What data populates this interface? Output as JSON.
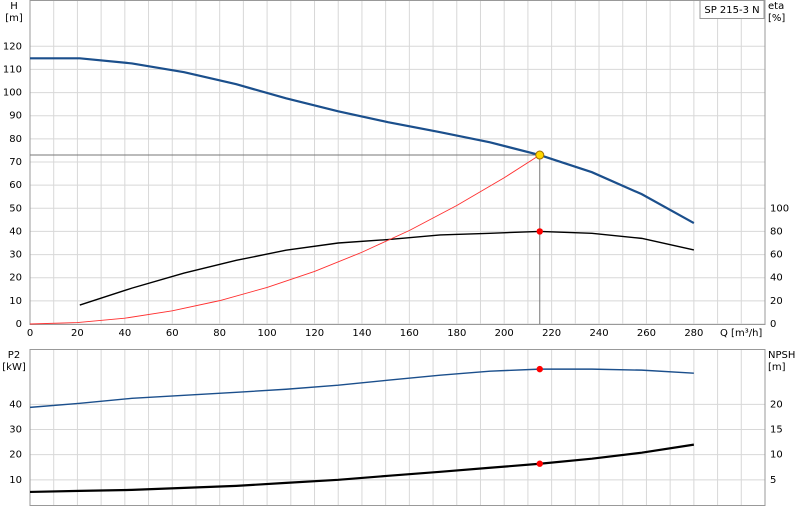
{
  "chart_data": [
    {
      "type": "line",
      "title": "SP 215-3 N",
      "y_label": "H",
      "y_unit": "[m]",
      "y2_label": "eta",
      "y2_unit": "[%]",
      "x_label": "Q [m³/h]",
      "xlim": [
        0,
        310
      ],
      "xticks": [
        0,
        20,
        40,
        60,
        80,
        100,
        120,
        140,
        160,
        180,
        200,
        220,
        240,
        260,
        280
      ],
      "xminorticks": [
        10,
        30,
        50,
        70,
        90,
        110,
        130,
        150,
        170,
        190,
        210,
        230,
        250,
        270,
        290,
        300
      ],
      "ylim": [
        0,
        140
      ],
      "yticks": [
        0,
        10,
        20,
        30,
        40,
        50,
        60,
        70,
        80,
        90,
        100,
        110,
        120
      ],
      "y2lim": [
        0,
        280
      ],
      "y2ticks": [
        0,
        20,
        40,
        60,
        80,
        100
      ],
      "grid": true,
      "series": [
        {
          "color": "#1b4f8c",
          "width": 2.2,
          "x": [
            0,
            21,
            43,
            65,
            87,
            108,
            130,
            151,
            173,
            194,
            215,
            237,
            258,
            280
          ],
          "values": [
            114.8,
            114.8,
            112.6,
            108.8,
            103.6,
            97.5,
            91.9,
            87.2,
            82.9,
            78.5,
            73,
            65.6,
            56.1,
            43.6
          ]
        },
        {
          "color": "#000000",
          "width": 1.4,
          "axis": "y2",
          "x": [
            21,
            43,
            65,
            87,
            108,
            130,
            151,
            173,
            194,
            215,
            237,
            258,
            280
          ],
          "values": [
            16.4,
            31,
            44,
            55,
            63.8,
            70,
            73,
            77,
            78.4,
            80,
            78.4,
            74,
            64
          ]
        },
        {
          "color": "#ff3030",
          "width": 0.9,
          "x": [
            0,
            20,
            40,
            60,
            80,
            100,
            120,
            140,
            160,
            180,
            200,
            215
          ],
          "values": [
            0,
            0.6,
            2.5,
            5.7,
            10.1,
            15.8,
            22.7,
            31,
            40.4,
            51.2,
            63.2,
            73
          ]
        }
      ],
      "points": [
        {
          "x": 215,
          "y": 73,
          "color": "#ffd700",
          "guide": true
        },
        {
          "x": 215,
          "y": 80,
          "axis": "y2",
          "color": "#ff0000"
        }
      ]
    },
    {
      "type": "line",
      "y_label": "P2",
      "y_unit": "[kW]",
      "y2_label": "NPSH",
      "y2_unit": "[m]",
      "xlim": [
        0,
        310
      ],
      "xticks": [
        0,
        20,
        40,
        60,
        80,
        100,
        120,
        140,
        160,
        180,
        200,
        220,
        240,
        260,
        280
      ],
      "xminorticks": [
        10,
        30,
        50,
        70,
        90,
        110,
        130,
        150,
        170,
        190,
        210,
        230,
        250,
        270,
        290,
        300
      ],
      "ylim": [
        0,
        62
      ],
      "yticks": [
        10,
        20,
        30,
        40
      ],
      "y2lim": [
        0,
        31
      ],
      "y2ticks": [
        5,
        10,
        15,
        20
      ],
      "grid": true,
      "series": [
        {
          "color": "#1b4f8c",
          "width": 1.4,
          "x": [
            0,
            21,
            43,
            65,
            87,
            108,
            130,
            151,
            173,
            194,
            215,
            237,
            258,
            280
          ],
          "values": [
            38.8,
            40.4,
            42.4,
            43.6,
            44.8,
            46,
            47.6,
            49.6,
            51.6,
            53.2,
            54,
            54,
            53.6,
            52.4
          ]
        },
        {
          "color": "#000000",
          "width": 2.2,
          "axis": "y2",
          "x": [
            0,
            21,
            43,
            65,
            87,
            108,
            130,
            151,
            173,
            194,
            215,
            237,
            258,
            280
          ],
          "values": [
            2.6,
            2.8,
            3,
            3.4,
            3.8,
            4.4,
            5,
            5.8,
            6.6,
            7.4,
            8.2,
            9.2,
            10.4,
            12
          ]
        }
      ],
      "points": [
        {
          "x": 215,
          "y": 54,
          "color": "#ff0000"
        },
        {
          "x": 215,
          "y": 8.2,
          "axis": "y2",
          "color": "#ff0000"
        }
      ]
    }
  ]
}
